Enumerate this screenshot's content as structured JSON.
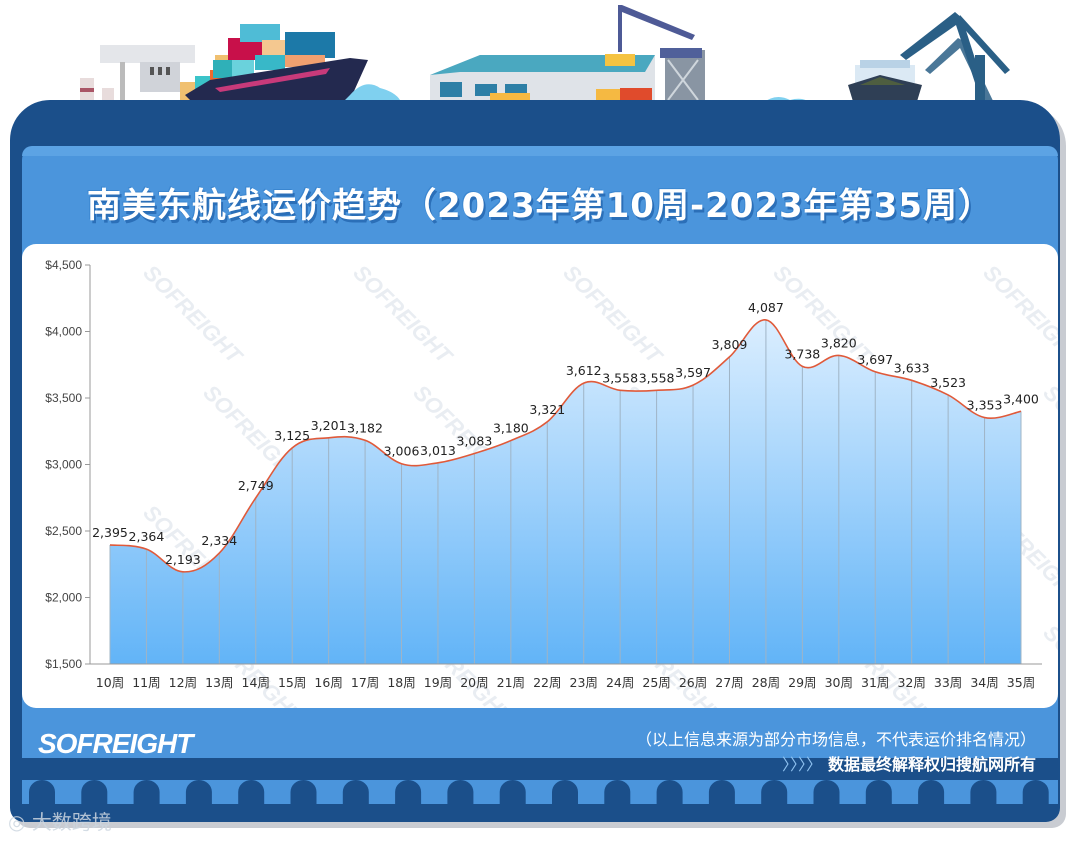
{
  "title": "南美东航线运价趋势（2023年第10周-2023年第35周）",
  "chart_data": {
    "type": "area",
    "title": "南美东航线运价趋势（2023年第10周-2023年第35周）",
    "xlabel": "",
    "ylabel": "",
    "ylim": [
      1500,
      4500
    ],
    "yticks": [
      "$1,500",
      "$2,000",
      "$2,500",
      "$3,000",
      "$3,500",
      "$4,000",
      "$4,500"
    ],
    "ytick_values": [
      1500,
      2000,
      2500,
      3000,
      3500,
      4000,
      4500
    ],
    "categories": [
      "10周",
      "11周",
      "12周",
      "13周",
      "14周",
      "15周",
      "16周",
      "17周",
      "18周",
      "19周",
      "20周",
      "21周",
      "22周",
      "23周",
      "24周",
      "25周",
      "26周",
      "27周",
      "28周",
      "29周",
      "30周",
      "31周",
      "32周",
      "33周",
      "34周",
      "35周"
    ],
    "values": [
      2395,
      2364,
      2193,
      2334,
      2749,
      3125,
      3201,
      3182,
      3006,
      3013,
      3083,
      3180,
      3321,
      3612,
      3558,
      3558,
      3597,
      3809,
      4087,
      3738,
      3820,
      3697,
      3633,
      3523,
      3353,
      3400
    ],
    "value_labels": [
      "2,395",
      "2,364",
      "2,193",
      "2,334",
      "2,749",
      "3,125",
      "3,201",
      "3,182",
      "3,006",
      "3,013",
      "3,083",
      "3,180",
      "3,321",
      "3,612",
      "3,558",
      "3,558",
      "3,597",
      "3,809",
      "4,087",
      "3,738",
      "3,820",
      "3,697",
      "3,633",
      "3,523",
      "3,353",
      "3,400"
    ],
    "line_color": "#e05a3a",
    "fill_top": "#dbeeff",
    "fill_bottom": "#62b4f7",
    "grid": false,
    "legend": "none"
  },
  "footer": {
    "logo": "SOFREIGHT",
    "note": "（以上信息来源为部分市场信息，不代表运价排名情况）",
    "arrows": "〉〉〉〉",
    "copyright": "数据最终解释权归搜航网所有"
  },
  "watermark": {
    "chart": "SOFREIGHT",
    "corner": "大数跨境"
  },
  "colors": {
    "frame": "#1b4f8a",
    "inner": "#4b95dc",
    "panel": "#ffffff"
  }
}
